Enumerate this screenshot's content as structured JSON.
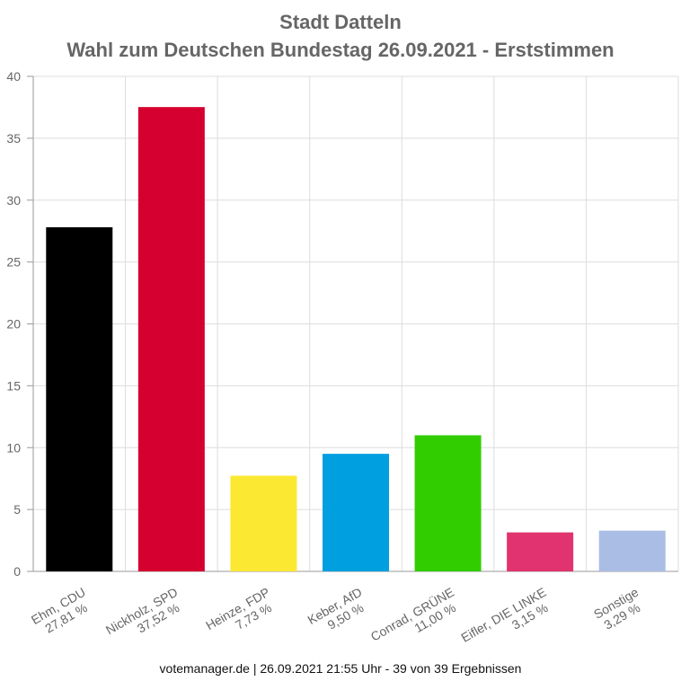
{
  "chart_data": {
    "type": "bar",
    "title_lines": [
      "Stadt Datteln",
      "Wahl zum Deutschen Bundestag 26.09.2021  - Erststimmen"
    ],
    "categories": [
      {
        "name": "Ehm, CDU",
        "pct_label": "27,81 %"
      },
      {
        "name": "Nickholz, SPD",
        "pct_label": "37,52 %"
      },
      {
        "name": "Heinze, FDP",
        "pct_label": "7,73 %"
      },
      {
        "name": "Keber, AfD",
        "pct_label": "9,50 %"
      },
      {
        "name": "Conrad, GRÜNE",
        "pct_label": "11,00 %"
      },
      {
        "name": "Eifler, DIE LINKE",
        "pct_label": "3,15 %"
      },
      {
        "name": "Sonstige",
        "pct_label": "3,29 %"
      }
    ],
    "values": [
      27.81,
      37.52,
      7.73,
      9.5,
      11.0,
      3.15,
      3.29
    ],
    "colors": [
      "#000000",
      "#d5002f",
      "#fbe833",
      "#009fe0",
      "#32cd00",
      "#e0336f",
      "#aabde5"
    ],
    "ylim": [
      0,
      40
    ],
    "yticks": [
      0,
      5,
      10,
      15,
      20,
      25,
      30,
      35,
      40
    ],
    "grid": true
  },
  "footer": "votemanager.de | 26.09.2021 21:55 Uhr - 39 von 39 Ergebnissen"
}
